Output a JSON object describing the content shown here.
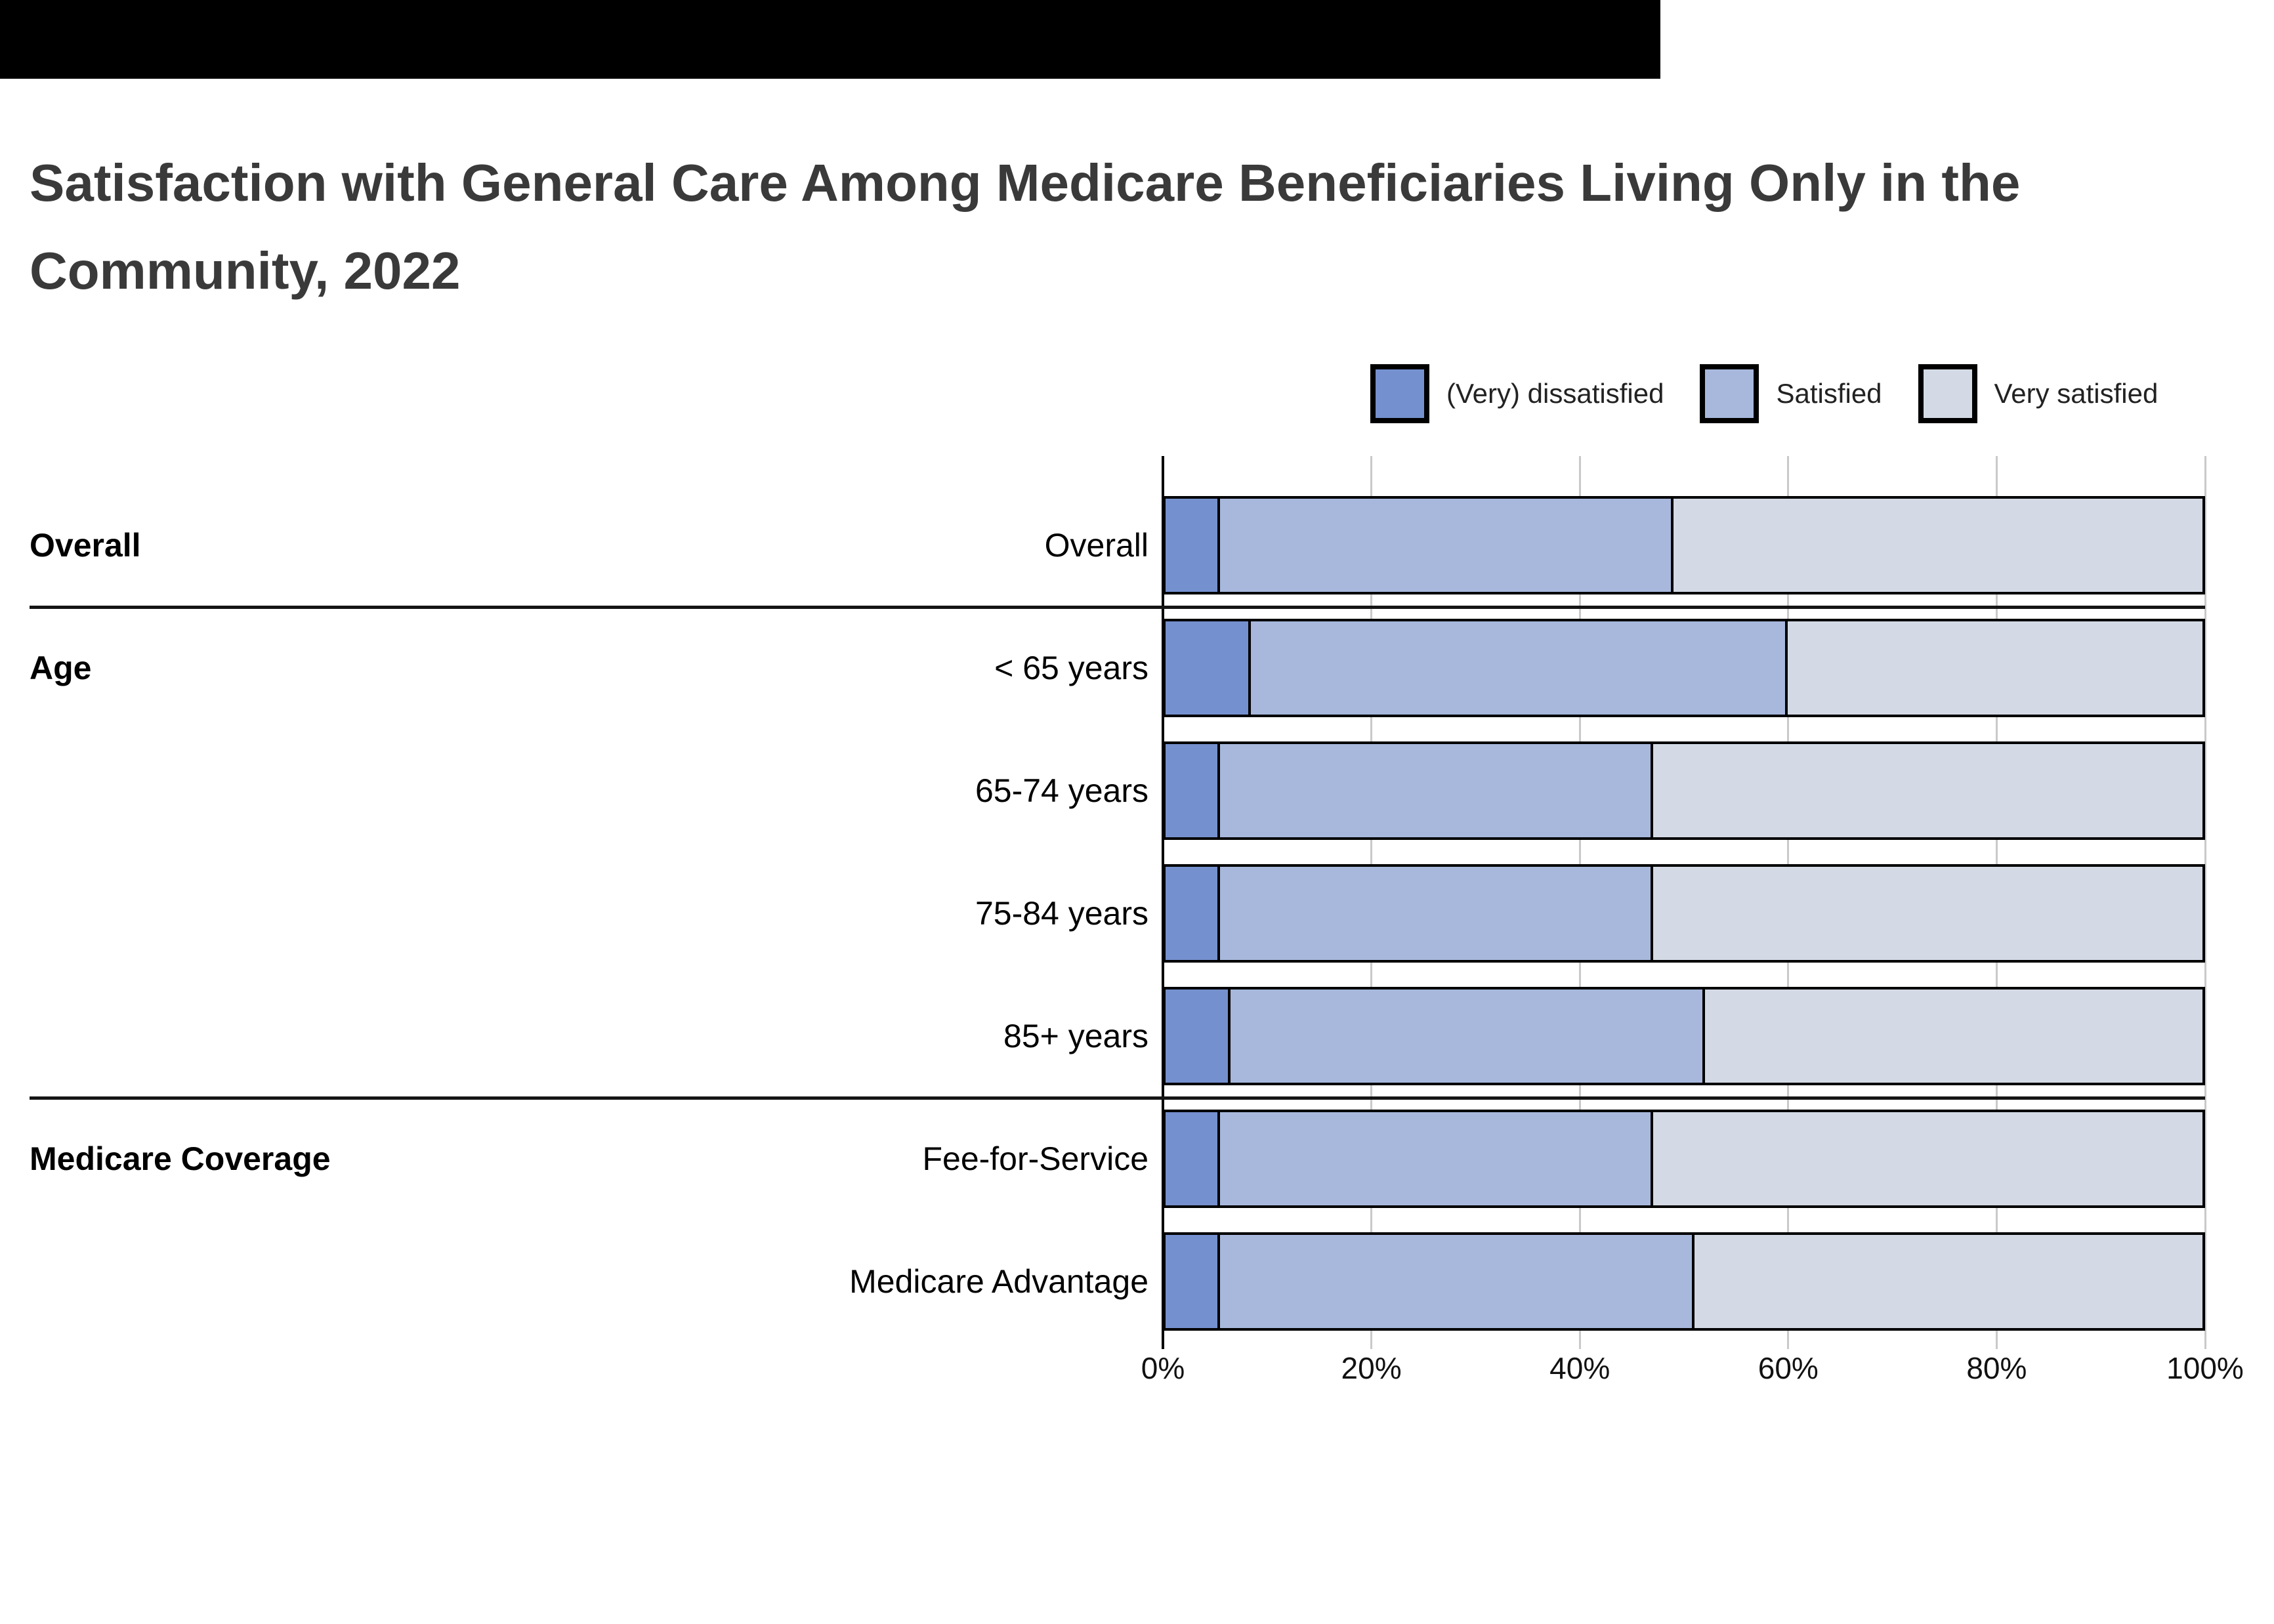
{
  "title_lines": [
    "Satisfaction with General Care Among Medicare Beneficiaries Living Only in the",
    "Community, 2022"
  ],
  "legend": {
    "items": [
      {
        "label": "(Very) dissatisfied",
        "color": "#7590ce"
      },
      {
        "label": "Satisfied",
        "color": "#a7b8dc"
      },
      {
        "label": "Very satisfied",
        "color": "#d3dae5"
      }
    ]
  },
  "colors": {
    "dissatisfied": "#7590ce",
    "satisfied": "#a7b8dc",
    "very_satisfied": "#d3dae5",
    "bar_border": "#000000",
    "gridline": "#c9c9c9",
    "top_bar": "#000000",
    "title_text": "#3a3a3a"
  },
  "chart_data": {
    "type": "bar",
    "stacked": true,
    "orientation": "horizontal",
    "title": "Satisfaction with General Care Among Medicare Beneficiaries Living Only in the Community, 2022",
    "series": [
      "(Very) dissatisfied",
      "Satisfied",
      "Very satisfied"
    ],
    "rows": [
      {
        "group": "Overall",
        "label": "Overall",
        "values": [
          5,
          44,
          51
        ]
      },
      {
        "group": "Age",
        "label": "< 65 years",
        "values": [
          8,
          52,
          40
        ]
      },
      {
        "group": "Age",
        "label": "65-74 years",
        "values": [
          5,
          42,
          53
        ]
      },
      {
        "group": "Age",
        "label": "75-84 years",
        "values": [
          5,
          42,
          53
        ]
      },
      {
        "group": "Age",
        "label": "85+ years",
        "values": [
          6,
          46,
          48
        ]
      },
      {
        "group": "Medicare Coverage",
        "label": "Fee-for-Service",
        "values": [
          5,
          42,
          53
        ]
      },
      {
        "group": "Medicare Coverage",
        "label": "Medicare Advantage",
        "values": [
          5,
          46,
          49
        ]
      }
    ],
    "groups": [
      {
        "label": "Overall",
        "start": 0,
        "count": 1
      },
      {
        "label": "Age",
        "start": 1,
        "count": 4
      },
      {
        "label": "Medicare Coverage",
        "start": 5,
        "count": 2
      }
    ],
    "x_ticks": [
      "0%",
      "20%",
      "40%",
      "60%",
      "80%",
      "100%"
    ],
    "xlim": [
      0,
      100
    ],
    "legend_position": "top-right",
    "grid": true
  }
}
